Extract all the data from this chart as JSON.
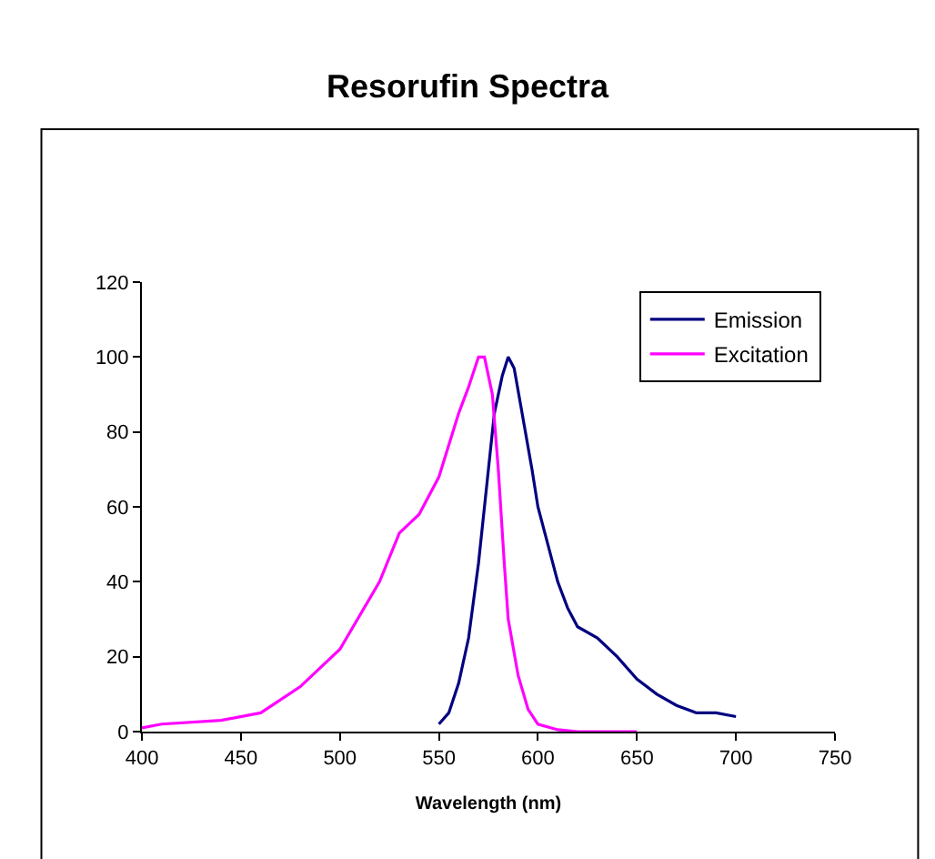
{
  "chart_data": {
    "type": "line",
    "title": "Resorufin Spectra",
    "xlabel": "Wavelength (nm)",
    "xlim": [
      400,
      750
    ],
    "xticks": [
      400,
      450,
      500,
      550,
      600,
      650,
      700,
      750
    ],
    "ylim": [
      0,
      120
    ],
    "yticks": [
      0,
      20,
      40,
      60,
      80,
      100,
      120
    ],
    "grid": false,
    "legend": "top right",
    "marker": "none",
    "line_style": "solid",
    "series": [
      {
        "name": "Emission",
        "color": "#000080",
        "x": [
          550,
          555,
          560,
          565,
          570,
          575,
          578,
          582,
          585,
          588,
          592,
          597,
          600,
          605,
          610,
          615,
          620,
          630,
          640,
          650,
          660,
          670,
          680,
          690,
          700
        ],
        "values": [
          2,
          5,
          13,
          25,
          45,
          70,
          85,
          95,
          100,
          97,
          85,
          70,
          60,
          50,
          40,
          33,
          28,
          25,
          20,
          14,
          10,
          7,
          5,
          5,
          4
        ]
      },
      {
        "name": "Excitation",
        "color": "#ff00ff",
        "x": [
          400,
          410,
          440,
          460,
          480,
          500,
          520,
          530,
          540,
          550,
          560,
          565,
          570,
          573,
          577,
          580,
          583,
          585,
          590,
          595,
          600,
          610,
          620,
          650
        ],
        "values": [
          1,
          2,
          3,
          5,
          12,
          22,
          40,
          53,
          58,
          68,
          85,
          92,
          100,
          100,
          90,
          70,
          45,
          30,
          15,
          6,
          2,
          0.5,
          0,
          0
        ]
      }
    ]
  }
}
